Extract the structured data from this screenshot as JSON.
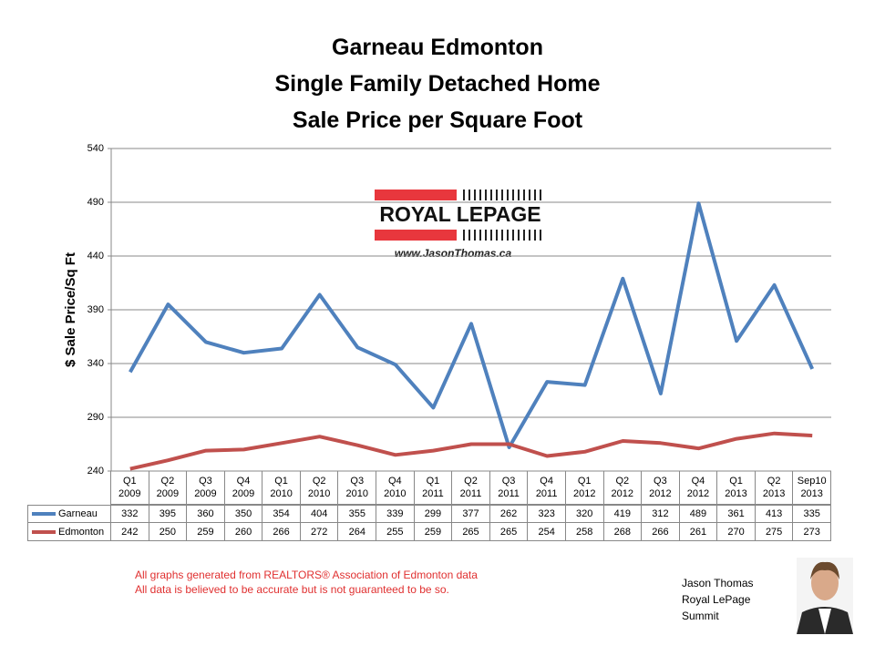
{
  "chart_data": {
    "type": "line",
    "title": [
      "Garneau Edmonton",
      "Single Family Detached Home",
      "Sale Price per Square Foot"
    ],
    "y_label": "$ Sale Price/Sq Ft",
    "categories": [
      "Q1 2009",
      "Q2 2009",
      "Q3 2009",
      "Q4 2009",
      "Q1 2010",
      "Q2 2010",
      "Q3 2010",
      "Q4 2010",
      "Q1 2011",
      "Q2 2011",
      "Q3 2011",
      "Q4 2011",
      "Q1 2012",
      "Q2 2012",
      "Q3 2012",
      "Q4 2012",
      "Q1 2013",
      "Q2 2013",
      "Sep10 2013"
    ],
    "series": [
      {
        "name": "Garneau",
        "color": "#4f81bd",
        "values": [
          332,
          395,
          360,
          350,
          354,
          404,
          355,
          339,
          299,
          377,
          262,
          323,
          320,
          419,
          312,
          489,
          361,
          413,
          335
        ]
      },
      {
        "name": "Edmonton",
        "color": "#c0504d",
        "values": [
          242,
          250,
          259,
          260,
          266,
          272,
          264,
          255,
          259,
          265,
          265,
          254,
          258,
          268,
          266,
          261,
          270,
          275,
          273
        ]
      }
    ],
    "ylim": [
      240,
      540
    ],
    "yticks": [
      240,
      290,
      340,
      390,
      440,
      490,
      540
    ],
    "grid": true
  },
  "logo": {
    "text": "ROYAL LEPAGE",
    "url": "www.JasonThomas.ca"
  },
  "footnotes": [
    "All graphs generated from REALTORS® Association of Edmonton data",
    "All data is believed to be accurate but is not guaranteed to be so."
  ],
  "author": [
    "Jason Thomas",
    "Royal LePage",
    "Summit"
  ]
}
